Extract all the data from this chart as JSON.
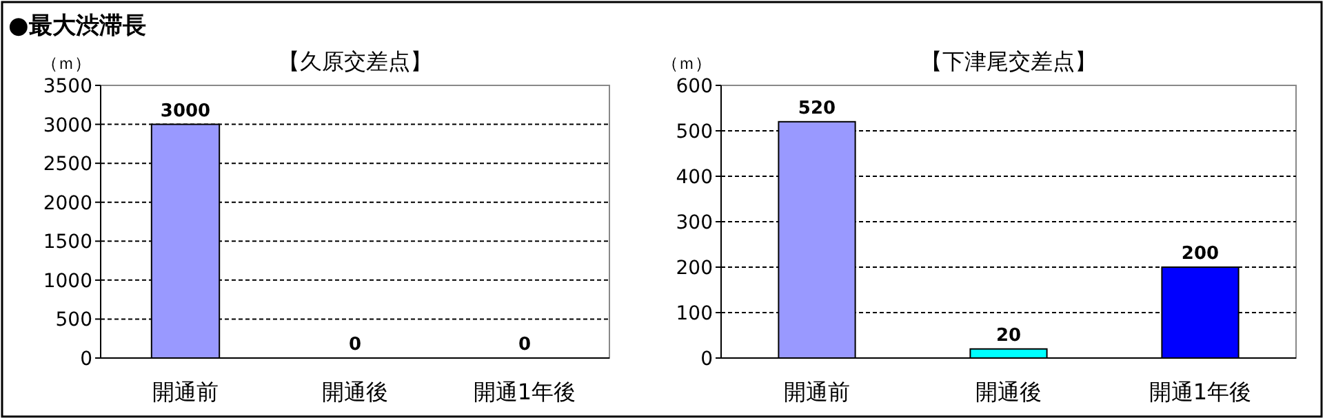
{
  "chart_data": [
    {
      "type": "bar",
      "title": "【久原交差点】",
      "ylabel": "（ｍ）",
      "annotations": [
        "●最大渋滞長"
      ],
      "categories": [
        "開通前",
        "開通後",
        "開通1年後"
      ],
      "values": [
        3000,
        0,
        0
      ],
      "colors": [
        "#9999ff",
        "#9999ff",
        "#9999ff"
      ],
      "ylim": [
        0,
        3500
      ],
      "yticks": [
        0,
        500,
        1000,
        1500,
        2000,
        2500,
        3000,
        3500
      ],
      "grid": "y",
      "line_style": "dashed",
      "data_labels": true
    },
    {
      "type": "bar",
      "title": "【下津尾交差点】",
      "ylabel": "（ｍ）",
      "categories": [
        "開通前",
        "開通後",
        "開通1年後"
      ],
      "values": [
        520,
        20,
        200
      ],
      "colors": [
        "#9999ff",
        "#00ffff",
        "#0000ff"
      ],
      "ylim": [
        0,
        600
      ],
      "yticks": [
        0,
        100,
        200,
        300,
        400,
        500,
        600
      ],
      "grid": "y",
      "line_style": "dashed",
      "data_labels": true
    }
  ]
}
